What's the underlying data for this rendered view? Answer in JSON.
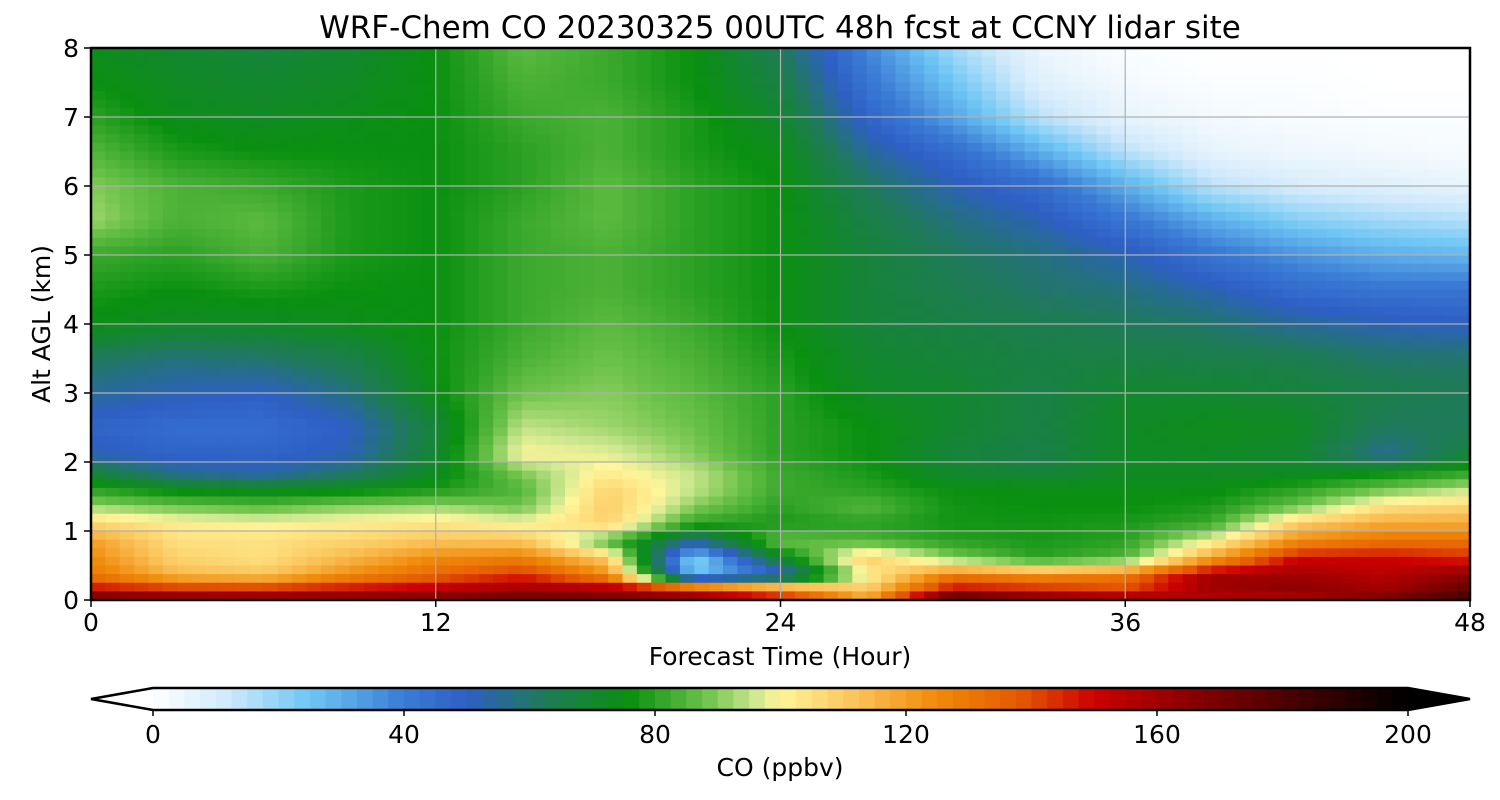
{
  "chart_data": {
    "type": "heatmap",
    "title": "WRF-Chem CO  20230325 00UTC 48h fcst at CCNY lidar site",
    "xlabel": "Forecast Time (Hour)",
    "ylabel": "Alt AGL (km)",
    "xlim": [
      0,
      48
    ],
    "ylim": [
      0,
      8
    ],
    "xticks": [
      0,
      12,
      24,
      36,
      48
    ],
    "yticks": [
      0,
      1,
      2,
      3,
      4,
      5,
      6,
      7,
      8
    ],
    "grid": true,
    "colorbar": {
      "label": "CO  (ppbv)",
      "orientation": "horizontal",
      "placement": "bottom",
      "extend": "both",
      "range": [
        0,
        200
      ],
      "ticks": [
        0,
        40,
        80,
        120,
        160,
        200
      ],
      "stops": [
        {
          "v": 0,
          "c": "#ffffff"
        },
        {
          "v": 12,
          "c": "#cfe9fb"
        },
        {
          "v": 25,
          "c": "#6ec6f4"
        },
        {
          "v": 40,
          "c": "#3a7bd5"
        },
        {
          "v": 50,
          "c": "#2e5fc4"
        },
        {
          "v": 62,
          "c": "#1f7a5a"
        },
        {
          "v": 76,
          "c": "#0a9010"
        },
        {
          "v": 88,
          "c": "#6cc24a"
        },
        {
          "v": 96,
          "c": "#cfe890"
        },
        {
          "v": 100,
          "c": "#fff59a"
        },
        {
          "v": 112,
          "c": "#fbc35a"
        },
        {
          "v": 125,
          "c": "#f08a0a"
        },
        {
          "v": 138,
          "c": "#e55a00"
        },
        {
          "v": 150,
          "c": "#cc0000"
        },
        {
          "v": 165,
          "c": "#8a0000"
        },
        {
          "v": 185,
          "c": "#3a0000"
        },
        {
          "v": 200,
          "c": "#000000"
        }
      ]
    },
    "x": [
      0,
      3,
      6,
      9,
      12,
      15,
      18,
      21,
      24,
      27,
      30,
      33,
      36,
      39,
      42,
      45,
      48
    ],
    "y": [
      0,
      0.15,
      0.35,
      0.6,
      0.85,
      1.1,
      1.35,
      1.6,
      1.85,
      2.1,
      2.5,
      3,
      3.5,
      4,
      4.5,
      5,
      5.5,
      6,
      6.5,
      7,
      7.5,
      8
    ],
    "z": [
      [
        175,
        172,
        170,
        170,
        170,
        175,
        170,
        165,
        150,
        120,
        185,
        170,
        165,
        155,
        155,
        170,
        185
      ],
      [
        150,
        145,
        145,
        150,
        155,
        160,
        160,
        150,
        130,
        110,
        150,
        145,
        140,
        160,
        165,
        160,
        175
      ],
      [
        130,
        115,
        112,
        125,
        135,
        145,
        125,
        25,
        45,
        100,
        130,
        125,
        130,
        160,
        160,
        155,
        165
      ],
      [
        125,
        108,
        105,
        115,
        125,
        128,
        110,
        20,
        70,
        110,
        90,
        80,
        85,
        120,
        150,
        150,
        145
      ],
      [
        120,
        105,
        105,
        108,
        112,
        112,
        85,
        55,
        88,
        85,
        80,
        78,
        80,
        100,
        125,
        132,
        132
      ],
      [
        108,
        102,
        100,
        102,
        104,
        100,
        108,
        80,
        78,
        80,
        77,
        77,
        78,
        82,
        110,
        118,
        118
      ],
      [
        92,
        88,
        86,
        90,
        92,
        88,
        110,
        90,
        80,
        85,
        77,
        76,
        76,
        78,
        88,
        105,
        108
      ],
      [
        80,
        74,
        72,
        74,
        78,
        85,
        108,
        95,
        82,
        80,
        76,
        75,
        75,
        75,
        80,
        88,
        95
      ],
      [
        68,
        55,
        52,
        60,
        72,
        90,
        102,
        95,
        82,
        78,
        70,
        68,
        72,
        72,
        72,
        75,
        80
      ],
      [
        52,
        48,
        48,
        52,
        70,
        100,
        98,
        90,
        80,
        76,
        68,
        65,
        72,
        72,
        70,
        55,
        68
      ],
      [
        48,
        45,
        45,
        50,
        68,
        95,
        92,
        88,
        80,
        76,
        70,
        66,
        72,
        74,
        72,
        62,
        62
      ],
      [
        55,
        52,
        50,
        58,
        75,
        88,
        90,
        86,
        80,
        72,
        70,
        66,
        70,
        70,
        68,
        65,
        62
      ],
      [
        62,
        58,
        60,
        65,
        76,
        84,
        88,
        84,
        78,
        70,
        68,
        66,
        66,
        65,
        64,
        60,
        60
      ],
      [
        75,
        72,
        72,
        74,
        76,
        82,
        86,
        82,
        76,
        68,
        66,
        64,
        62,
        60,
        55,
        52,
        50
      ],
      [
        78,
        76,
        78,
        76,
        76,
        82,
        84,
        80,
        76,
        68,
        64,
        60,
        58,
        52,
        45,
        42,
        42
      ],
      [
        82,
        80,
        84,
        78,
        76,
        82,
        84,
        80,
        76,
        68,
        62,
        58,
        52,
        42,
        35,
        30,
        28
      ],
      [
        92,
        84,
        86,
        78,
        76,
        82,
        86,
        80,
        76,
        66,
        58,
        52,
        42,
        30,
        22,
        18,
        16
      ],
      [
        90,
        84,
        82,
        78,
        76,
        80,
        86,
        80,
        76,
        62,
        52,
        45,
        30,
        15,
        10,
        8,
        6
      ],
      [
        85,
        78,
        76,
        76,
        76,
        80,
        84,
        78,
        74,
        55,
        45,
        30,
        15,
        6,
        4,
        3,
        2
      ],
      [
        80,
        74,
        72,
        74,
        76,
        82,
        84,
        78,
        70,
        48,
        32,
        15,
        6,
        3,
        2,
        1,
        1
      ],
      [
        76,
        72,
        70,
        72,
        76,
        84,
        82,
        76,
        66,
        42,
        25,
        8,
        3,
        1,
        1,
        0,
        0
      ],
      [
        74,
        70,
        68,
        70,
        76,
        86,
        82,
        76,
        62,
        38,
        18,
        5,
        1,
        0,
        0,
        0,
        0
      ]
    ]
  }
}
